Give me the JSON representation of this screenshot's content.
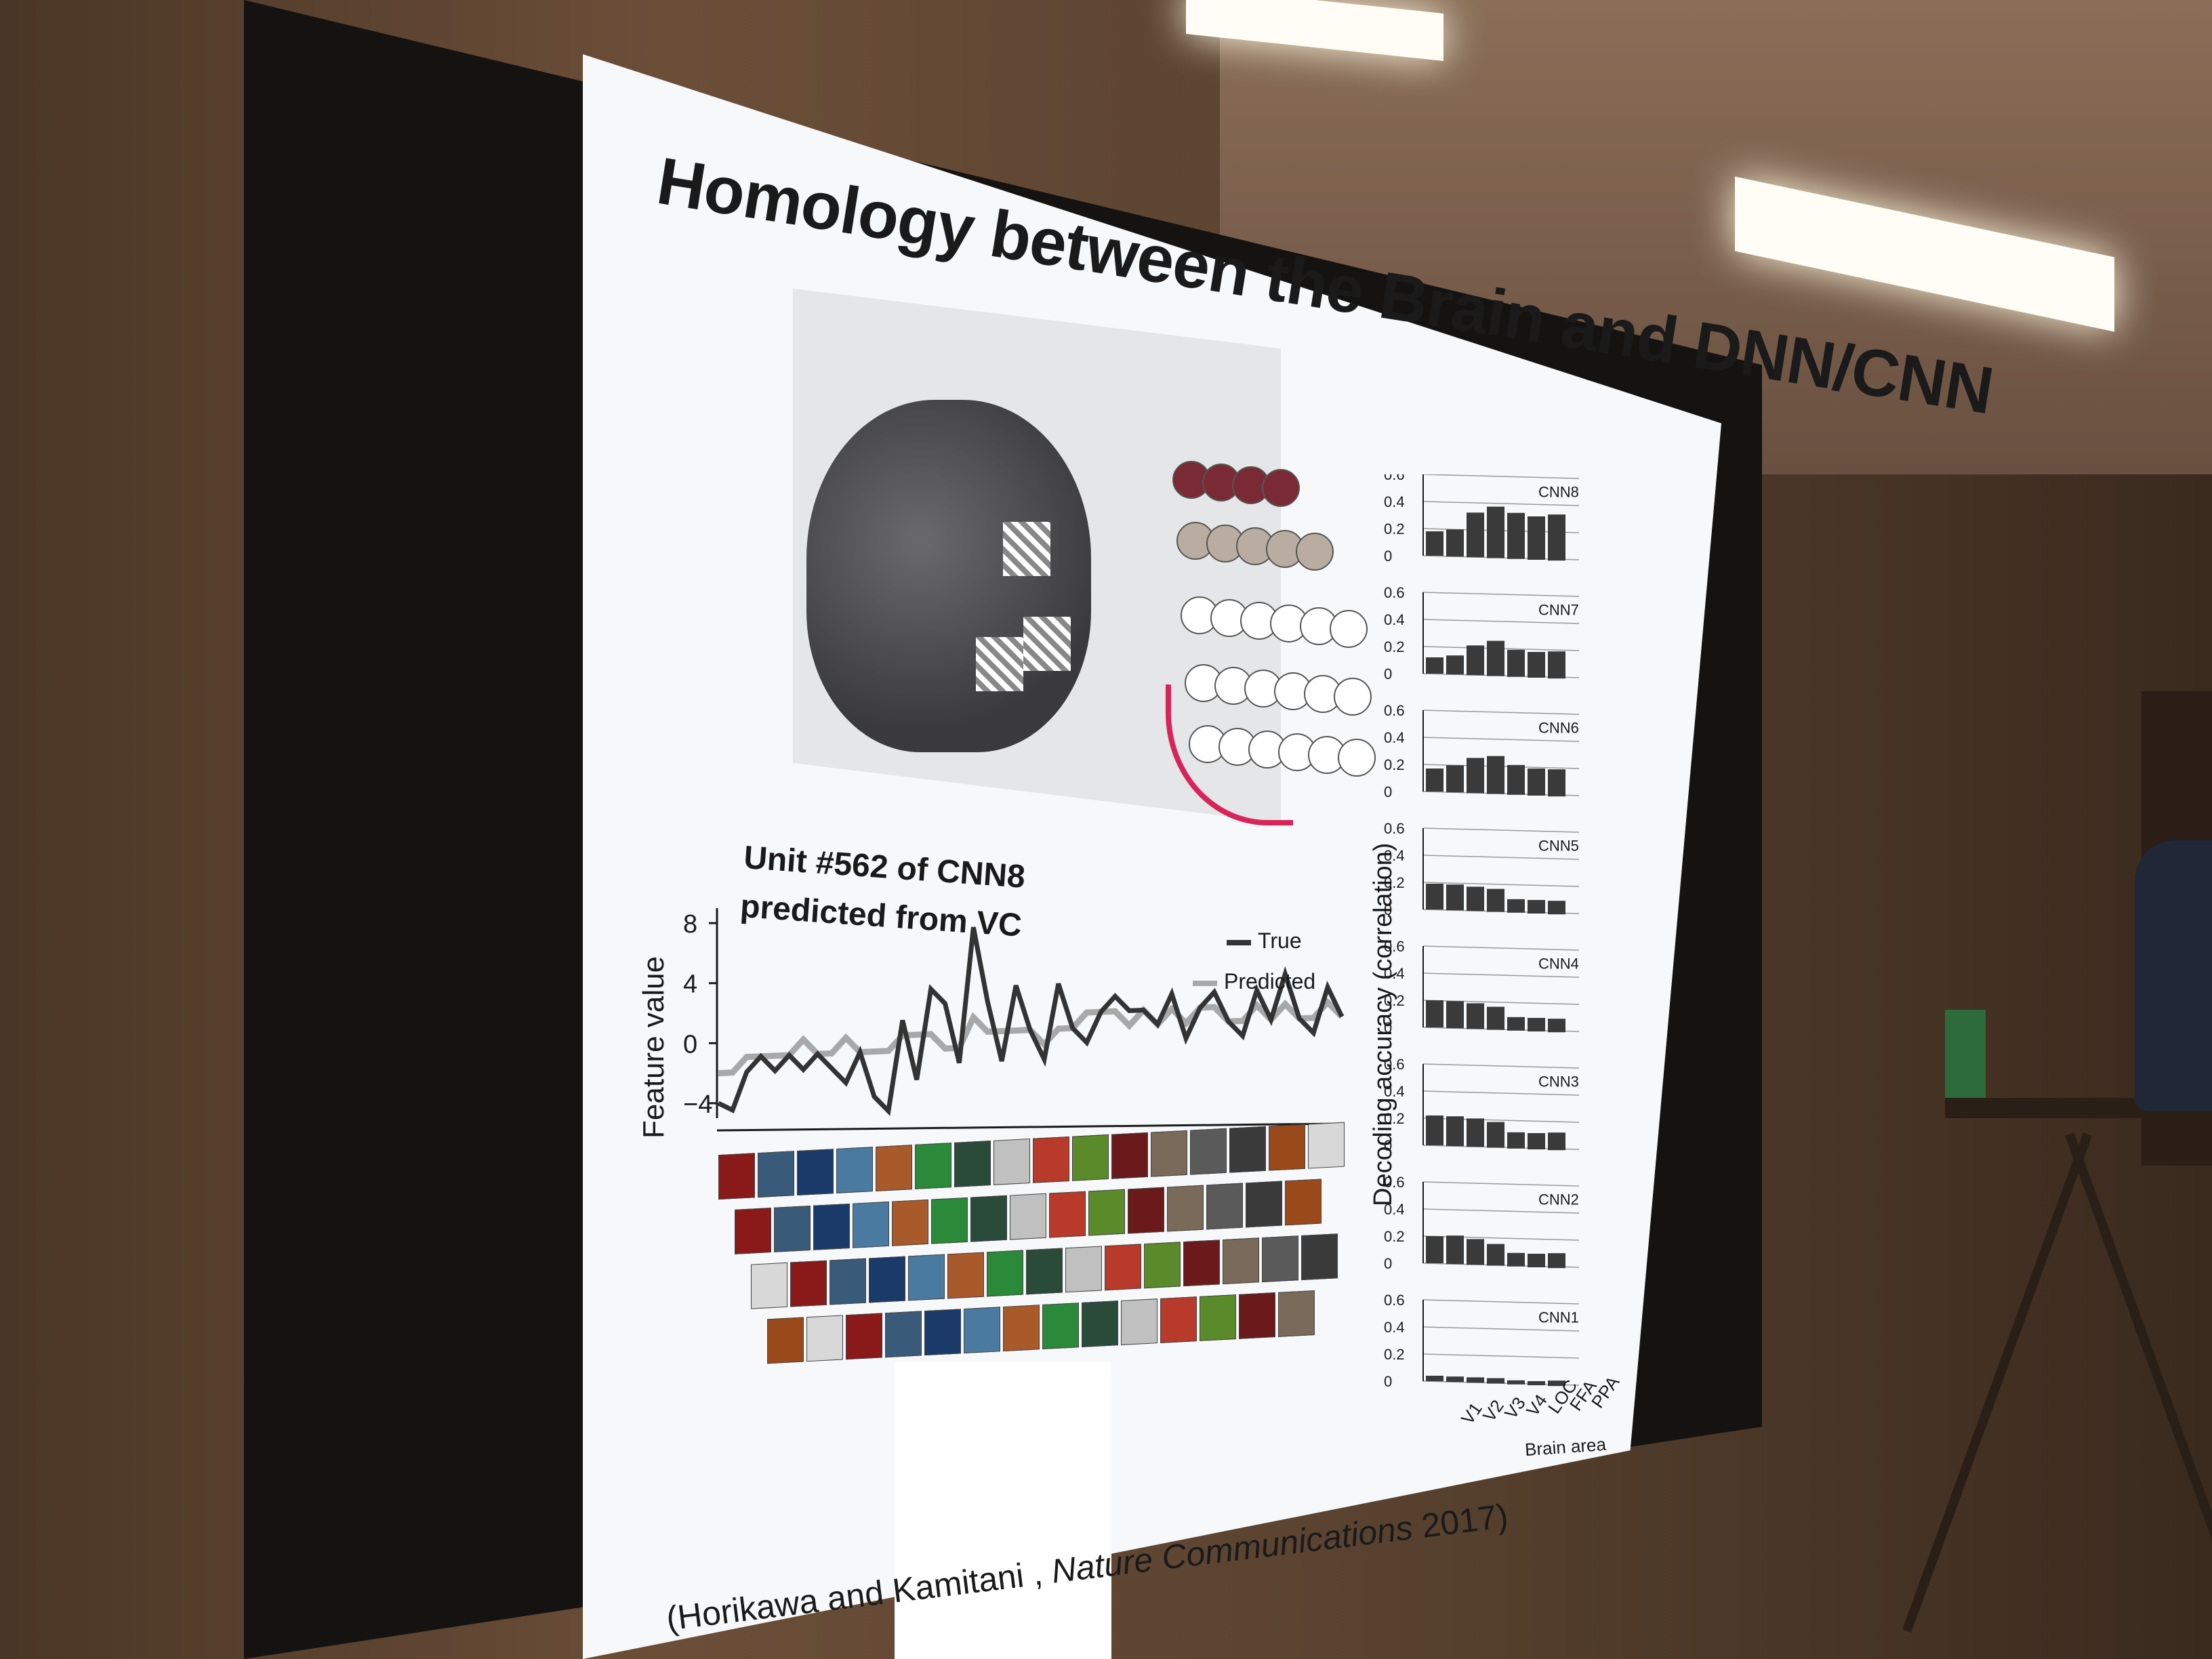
{
  "slide": {
    "title": "Homology between the Brain and DNN/CNN",
    "unit_title_line1": "Unit #562 of CNN8",
    "unit_title_line2": "predicted from VC",
    "feature_axis_label": "Feature value",
    "decoding_axis_label": "Decoding accuracy (correlation)",
    "brain_area_label": "Brain area",
    "citation_authors": "(Horikawa and Kamitani ,",
    "citation_journal": "Nature Communications",
    "citation_year": "2017)",
    "legend_true": "True",
    "legend_predicted": "Predicted",
    "colors": {
      "true_line": "#333333",
      "predicted_line": "#a8a8a8",
      "bars": "#3a3a3a",
      "red_curve": "#d8245a"
    }
  },
  "chart_data": [
    {
      "type": "line",
      "xlabel": "",
      "ylabel": "Feature value",
      "yticks": [
        "8",
        "4",
        "0",
        "−4"
      ],
      "ylim": [
        -5,
        9
      ],
      "series": [
        {
          "name": "True",
          "values": [
            -4,
            -4.5,
            -2,
            -1,
            -2,
            -1,
            -2,
            -1,
            -2,
            -3,
            -1,
            -4,
            -5,
            1,
            -3,
            3,
            2,
            -2,
            7,
            2,
            -2,
            3,
            0,
            -2,
            3,
            0,
            -1,
            1,
            2,
            1,
            1,
            0,
            2,
            -1,
            1,
            2,
            0,
            -1,
            2,
            0,
            3,
            0,
            -1,
            2,
            0
          ]
        },
        {
          "name": "Predicted",
          "values": [
            -2,
            -2,
            -1,
            -1,
            -1,
            -1,
            0,
            -1,
            -1,
            0,
            -1,
            -1,
            -1,
            0,
            0,
            0,
            -1,
            -1,
            1,
            0,
            0,
            0,
            0,
            -1,
            0,
            0,
            1,
            1,
            1,
            0,
            1,
            0,
            1,
            0,
            1,
            1,
            0,
            0,
            1,
            0,
            1,
            0,
            0,
            1,
            0
          ]
        }
      ]
    },
    {
      "type": "bar",
      "ylabel": "Decoding accuracy (correlation)",
      "xlabel": "Brain area",
      "categories": [
        "V1",
        "V2",
        "V3",
        "V4",
        "LOC",
        "FFA",
        "PPA"
      ],
      "yticks": [
        "0.6",
        "0.4",
        "0.2",
        "0"
      ],
      "ylim": [
        0,
        0.6
      ],
      "series": [
        {
          "name": "CNN8",
          "values": [
            0.18,
            0.2,
            0.33,
            0.38,
            0.34,
            0.32,
            0.34
          ]
        },
        {
          "name": "CNN7",
          "values": [
            0.12,
            0.14,
            0.22,
            0.26,
            0.2,
            0.19,
            0.2
          ]
        },
        {
          "name": "CNN6",
          "values": [
            0.17,
            0.2,
            0.26,
            0.28,
            0.22,
            0.2,
            0.2
          ]
        },
        {
          "name": "CNN5",
          "values": [
            0.19,
            0.19,
            0.18,
            0.17,
            0.1,
            0.1,
            0.1
          ]
        },
        {
          "name": "CNN4",
          "values": [
            0.2,
            0.2,
            0.19,
            0.17,
            0.1,
            0.1,
            0.1
          ]
        },
        {
          "name": "CNN3",
          "values": [
            0.22,
            0.22,
            0.21,
            0.19,
            0.12,
            0.12,
            0.13
          ]
        },
        {
          "name": "CNN2",
          "values": [
            0.2,
            0.21,
            0.19,
            0.16,
            0.1,
            0.1,
            0.11
          ]
        },
        {
          "name": "CNN1",
          "values": [
            0.04,
            0.04,
            0.04,
            0.04,
            0.03,
            0.03,
            0.04
          ]
        }
      ]
    }
  ]
}
